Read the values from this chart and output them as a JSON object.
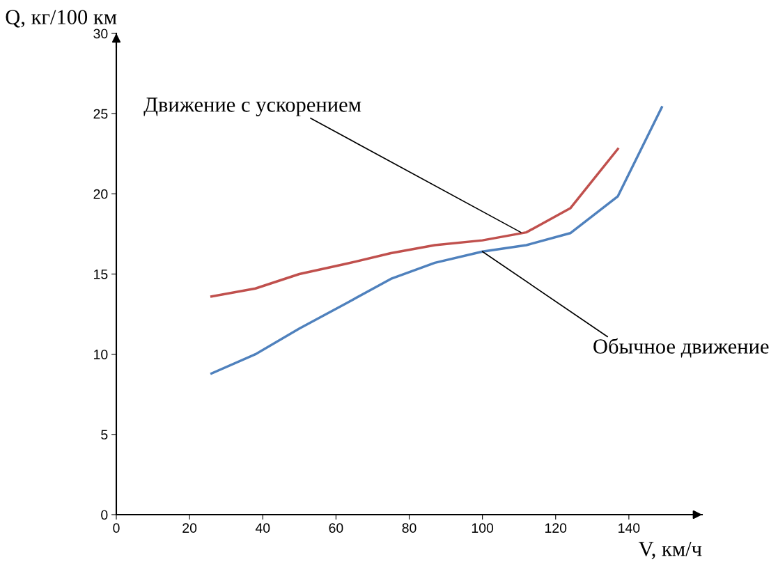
{
  "chart_data": {
    "type": "line",
    "xlabel": "V, км/ч",
    "ylabel": "Q, кг/100 км",
    "xlim": [
      0,
      160
    ],
    "xticks": [
      0,
      20,
      40,
      60,
      80,
      100,
      120,
      140
    ],
    "ylim": [
      0,
      30
    ],
    "yticks": [
      0,
      5,
      10,
      15,
      20,
      25,
      30
    ],
    "series": [
      {
        "color": "#c0504d",
        "x": [
          26,
          38,
          50,
          63,
          75,
          87,
          100,
          112,
          124,
          137
        ],
        "values": [
          13.6,
          14.1,
          15.0,
          15.65,
          16.3,
          16.8,
          17.1,
          17.6,
          19.1,
          22.8
        ]
      },
      {
        "color": "#4f81bd",
        "x": [
          26,
          38,
          50,
          63,
          75,
          87,
          100,
          112,
          124,
          137,
          149
        ],
        "values": [
          8.8,
          10.0,
          11.6,
          13.2,
          14.7,
          15.7,
          16.4,
          16.8,
          17.55,
          19.85,
          25.4
        ]
      }
    ],
    "annotations": [
      {
        "text": "Движение с ускорением",
        "x": 110.5,
        "y": 17.6
      },
      {
        "text": "Обычное движение",
        "x": 100,
        "y": 16.4
      }
    ],
    "grid": false,
    "legend": false,
    "marker": "none",
    "line_style": "solid"
  }
}
